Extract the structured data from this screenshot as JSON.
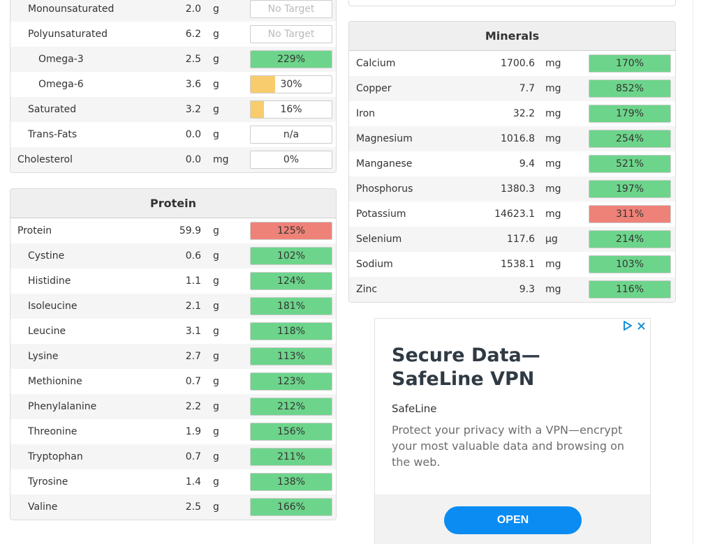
{
  "colors": {
    "green": "#6dd58b",
    "yellow": "#f8cc6d",
    "red": "#ef8278",
    "open_button": "#0a8cf2"
  },
  "fats_panel": {
    "rows": [
      {
        "name": "Monounsaturated",
        "indent": 1,
        "amount": "2.0",
        "unit": "g",
        "percent": "No Target",
        "status": "none",
        "fill": 0
      },
      {
        "name": "Polyunsaturated",
        "indent": 1,
        "amount": "6.2",
        "unit": "g",
        "percent": "No Target",
        "status": "none",
        "fill": 0
      },
      {
        "name": "Omega-3",
        "indent": 2,
        "amount": "2.5",
        "unit": "g",
        "percent": "229%",
        "status": "green",
        "fill": 1
      },
      {
        "name": "Omega-6",
        "indent": 2,
        "amount": "3.6",
        "unit": "g",
        "percent": "30%",
        "status": "yellow",
        "fill": 0.3
      },
      {
        "name": "Saturated",
        "indent": 1,
        "amount": "3.2",
        "unit": "g",
        "percent": "16%",
        "status": "yellow",
        "fill": 0.16
      },
      {
        "name": "Trans-Fats",
        "indent": 1,
        "amount": "0.0",
        "unit": "g",
        "percent": "n/a",
        "status": "none",
        "fill": 0
      },
      {
        "name": "Cholesterol",
        "indent": 0,
        "amount": "0.0",
        "unit": "mg",
        "percent": "0%",
        "status": "none",
        "fill": 0
      }
    ]
  },
  "protein_panel": {
    "title": "Protein",
    "rows": [
      {
        "name": "Protein",
        "indent": 0,
        "amount": "59.9",
        "unit": "g",
        "percent": "125%",
        "status": "red",
        "fill": 1
      },
      {
        "name": "Cystine",
        "indent": 1,
        "amount": "0.6",
        "unit": "g",
        "percent": "102%",
        "status": "green",
        "fill": 1
      },
      {
        "name": "Histidine",
        "indent": 1,
        "amount": "1.1",
        "unit": "g",
        "percent": "124%",
        "status": "green",
        "fill": 1
      },
      {
        "name": "Isoleucine",
        "indent": 1,
        "amount": "2.1",
        "unit": "g",
        "percent": "181%",
        "status": "green",
        "fill": 1
      },
      {
        "name": "Leucine",
        "indent": 1,
        "amount": "3.1",
        "unit": "g",
        "percent": "118%",
        "status": "green",
        "fill": 1
      },
      {
        "name": "Lysine",
        "indent": 1,
        "amount": "2.7",
        "unit": "g",
        "percent": "113%",
        "status": "green",
        "fill": 1
      },
      {
        "name": "Methionine",
        "indent": 1,
        "amount": "0.7",
        "unit": "g",
        "percent": "123%",
        "status": "green",
        "fill": 1
      },
      {
        "name": "Phenylalanine",
        "indent": 1,
        "amount": "2.2",
        "unit": "g",
        "percent": "212%",
        "status": "green",
        "fill": 1
      },
      {
        "name": "Threonine",
        "indent": 1,
        "amount": "1.9",
        "unit": "g",
        "percent": "156%",
        "status": "green",
        "fill": 1
      },
      {
        "name": "Tryptophan",
        "indent": 1,
        "amount": "0.7",
        "unit": "g",
        "percent": "211%",
        "status": "green",
        "fill": 1
      },
      {
        "name": "Tyrosine",
        "indent": 1,
        "amount": "1.4",
        "unit": "g",
        "percent": "138%",
        "status": "green",
        "fill": 1
      },
      {
        "name": "Valine",
        "indent": 1,
        "amount": "2.5",
        "unit": "g",
        "percent": "166%",
        "status": "green",
        "fill": 1
      }
    ]
  },
  "minerals_panel": {
    "title": "Minerals",
    "rows": [
      {
        "name": "Calcium",
        "indent": 0,
        "amount": "1700.6",
        "unit": "mg",
        "percent": "170%",
        "status": "green",
        "fill": 1
      },
      {
        "name": "Copper",
        "indent": 0,
        "amount": "7.7",
        "unit": "mg",
        "percent": "852%",
        "status": "green",
        "fill": 1
      },
      {
        "name": "Iron",
        "indent": 0,
        "amount": "32.2",
        "unit": "mg",
        "percent": "179%",
        "status": "green",
        "fill": 1
      },
      {
        "name": "Magnesium",
        "indent": 0,
        "amount": "1016.8",
        "unit": "mg",
        "percent": "254%",
        "status": "green",
        "fill": 1
      },
      {
        "name": "Manganese",
        "indent": 0,
        "amount": "9.4",
        "unit": "mg",
        "percent": "521%",
        "status": "green",
        "fill": 1
      },
      {
        "name": "Phosphorus",
        "indent": 0,
        "amount": "1380.3",
        "unit": "mg",
        "percent": "197%",
        "status": "green",
        "fill": 1
      },
      {
        "name": "Potassium",
        "indent": 0,
        "amount": "14623.1",
        "unit": "mg",
        "percent": "311%",
        "status": "red",
        "fill": 1
      },
      {
        "name": "Selenium",
        "indent": 0,
        "amount": "117.6",
        "unit": "µg",
        "percent": "214%",
        "status": "green",
        "fill": 1
      },
      {
        "name": "Sodium",
        "indent": 0,
        "amount": "1538.1",
        "unit": "mg",
        "percent": "103%",
        "status": "green",
        "fill": 1
      },
      {
        "name": "Zinc",
        "indent": 0,
        "amount": "9.3",
        "unit": "mg",
        "percent": "116%",
        "status": "green",
        "fill": 1
      }
    ]
  },
  "ad": {
    "title": "Secure Data—SafeLine VPN",
    "brand": "SafeLine",
    "description": "Protect your privacy with a VPN—encrypt your most valuable data and browsing on the web.",
    "cta": "OPEN",
    "adchoices_icon": "ad-choices-icon",
    "close_icon": "close-icon"
  }
}
